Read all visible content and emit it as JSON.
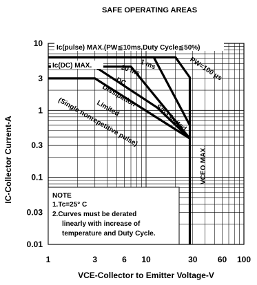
{
  "chart_data": {
    "type": "line",
    "title": "SAFE OPERATING AREAS",
    "xlabel": "VCE-Collector to Emitter Voltage-V",
    "ylabel": "IC-Collector Current-A",
    "x_scale": "log",
    "y_scale": "log",
    "xlim": [
      1,
      100
    ],
    "ylim": [
      0.01,
      10
    ],
    "grid": true,
    "x_ticks": [
      {
        "value": 1,
        "label": "1"
      },
      {
        "value": 3,
        "label": "3"
      },
      {
        "value": 6,
        "label": "6"
      },
      {
        "value": 10,
        "label": "10"
      },
      {
        "value": 30,
        "label": "30"
      },
      {
        "value": 60,
        "label": "60"
      },
      {
        "value": 100,
        "label": "100"
      }
    ],
    "y_ticks": [
      {
        "value": 10,
        "label": "10"
      },
      {
        "value": 3,
        "label": "3"
      },
      {
        "value": 1,
        "label": "1"
      },
      {
        "value": 0.3,
        "label": "0.3"
      },
      {
        "value": 0.1,
        "label": "0.1"
      },
      {
        "value": 0.03,
        "label": "0.03"
      },
      {
        "value": 0.01,
        "label": "0.01"
      }
    ],
    "series": [
      {
        "id": "pw100us",
        "x": [
          1,
          20,
          28,
          28
        ],
        "y": [
          6.2,
          6.2,
          3.1,
          0.01
        ]
      },
      {
        "id": "pw1ms",
        "x": [
          1,
          12,
          28
        ],
        "y": [
          6.2,
          6.2,
          0.6
        ]
      },
      {
        "id": "pw10ms",
        "x": [
          1,
          7,
          28
        ],
        "y": [
          4.5,
          4.5,
          0.38
        ]
      },
      {
        "id": "dc",
        "x": [
          1,
          3,
          13,
          28
        ],
        "y": [
          4.5,
          4.5,
          1.1,
          0.38
        ]
      },
      {
        "id": "dissipation",
        "x": [
          1,
          3,
          28
        ],
        "y": [
          3,
          3,
          0.38
        ]
      }
    ],
    "annotations": [
      {
        "id": "ic_pulse",
        "text": "Ic(pulse) MAX.(PW≦10ms,Duty Cycle≦50%)",
        "x": 1.3,
        "y": 8
      },
      {
        "id": "ic_dc",
        "text": "Ic(DC) MAX.",
        "x": 1.05,
        "y": 5.2
      },
      {
        "id": "pw100",
        "text": "PW=100 μs"
      },
      {
        "id": "ms1",
        "text": "1 ms"
      },
      {
        "id": "ms10",
        "text": "10 ms"
      },
      {
        "id": "dc_label",
        "text": "DC"
      },
      {
        "id": "dissipation_label",
        "text": "Dissipation"
      },
      {
        "id": "limited_label",
        "text": "Limited"
      },
      {
        "id": "single_label",
        "text": "(Single nonrepetitive pulse)"
      },
      {
        "id": "sb_label",
        "text": "S/b Limited"
      },
      {
        "id": "vceo_label",
        "text": "VCEO MAX."
      }
    ],
    "note": {
      "lines": [
        "NOTE",
        "1.Tc=25° C",
        "2.Curves must be derated",
        "linearly with increase of",
        "temperature and Duty Cycle."
      ]
    }
  }
}
